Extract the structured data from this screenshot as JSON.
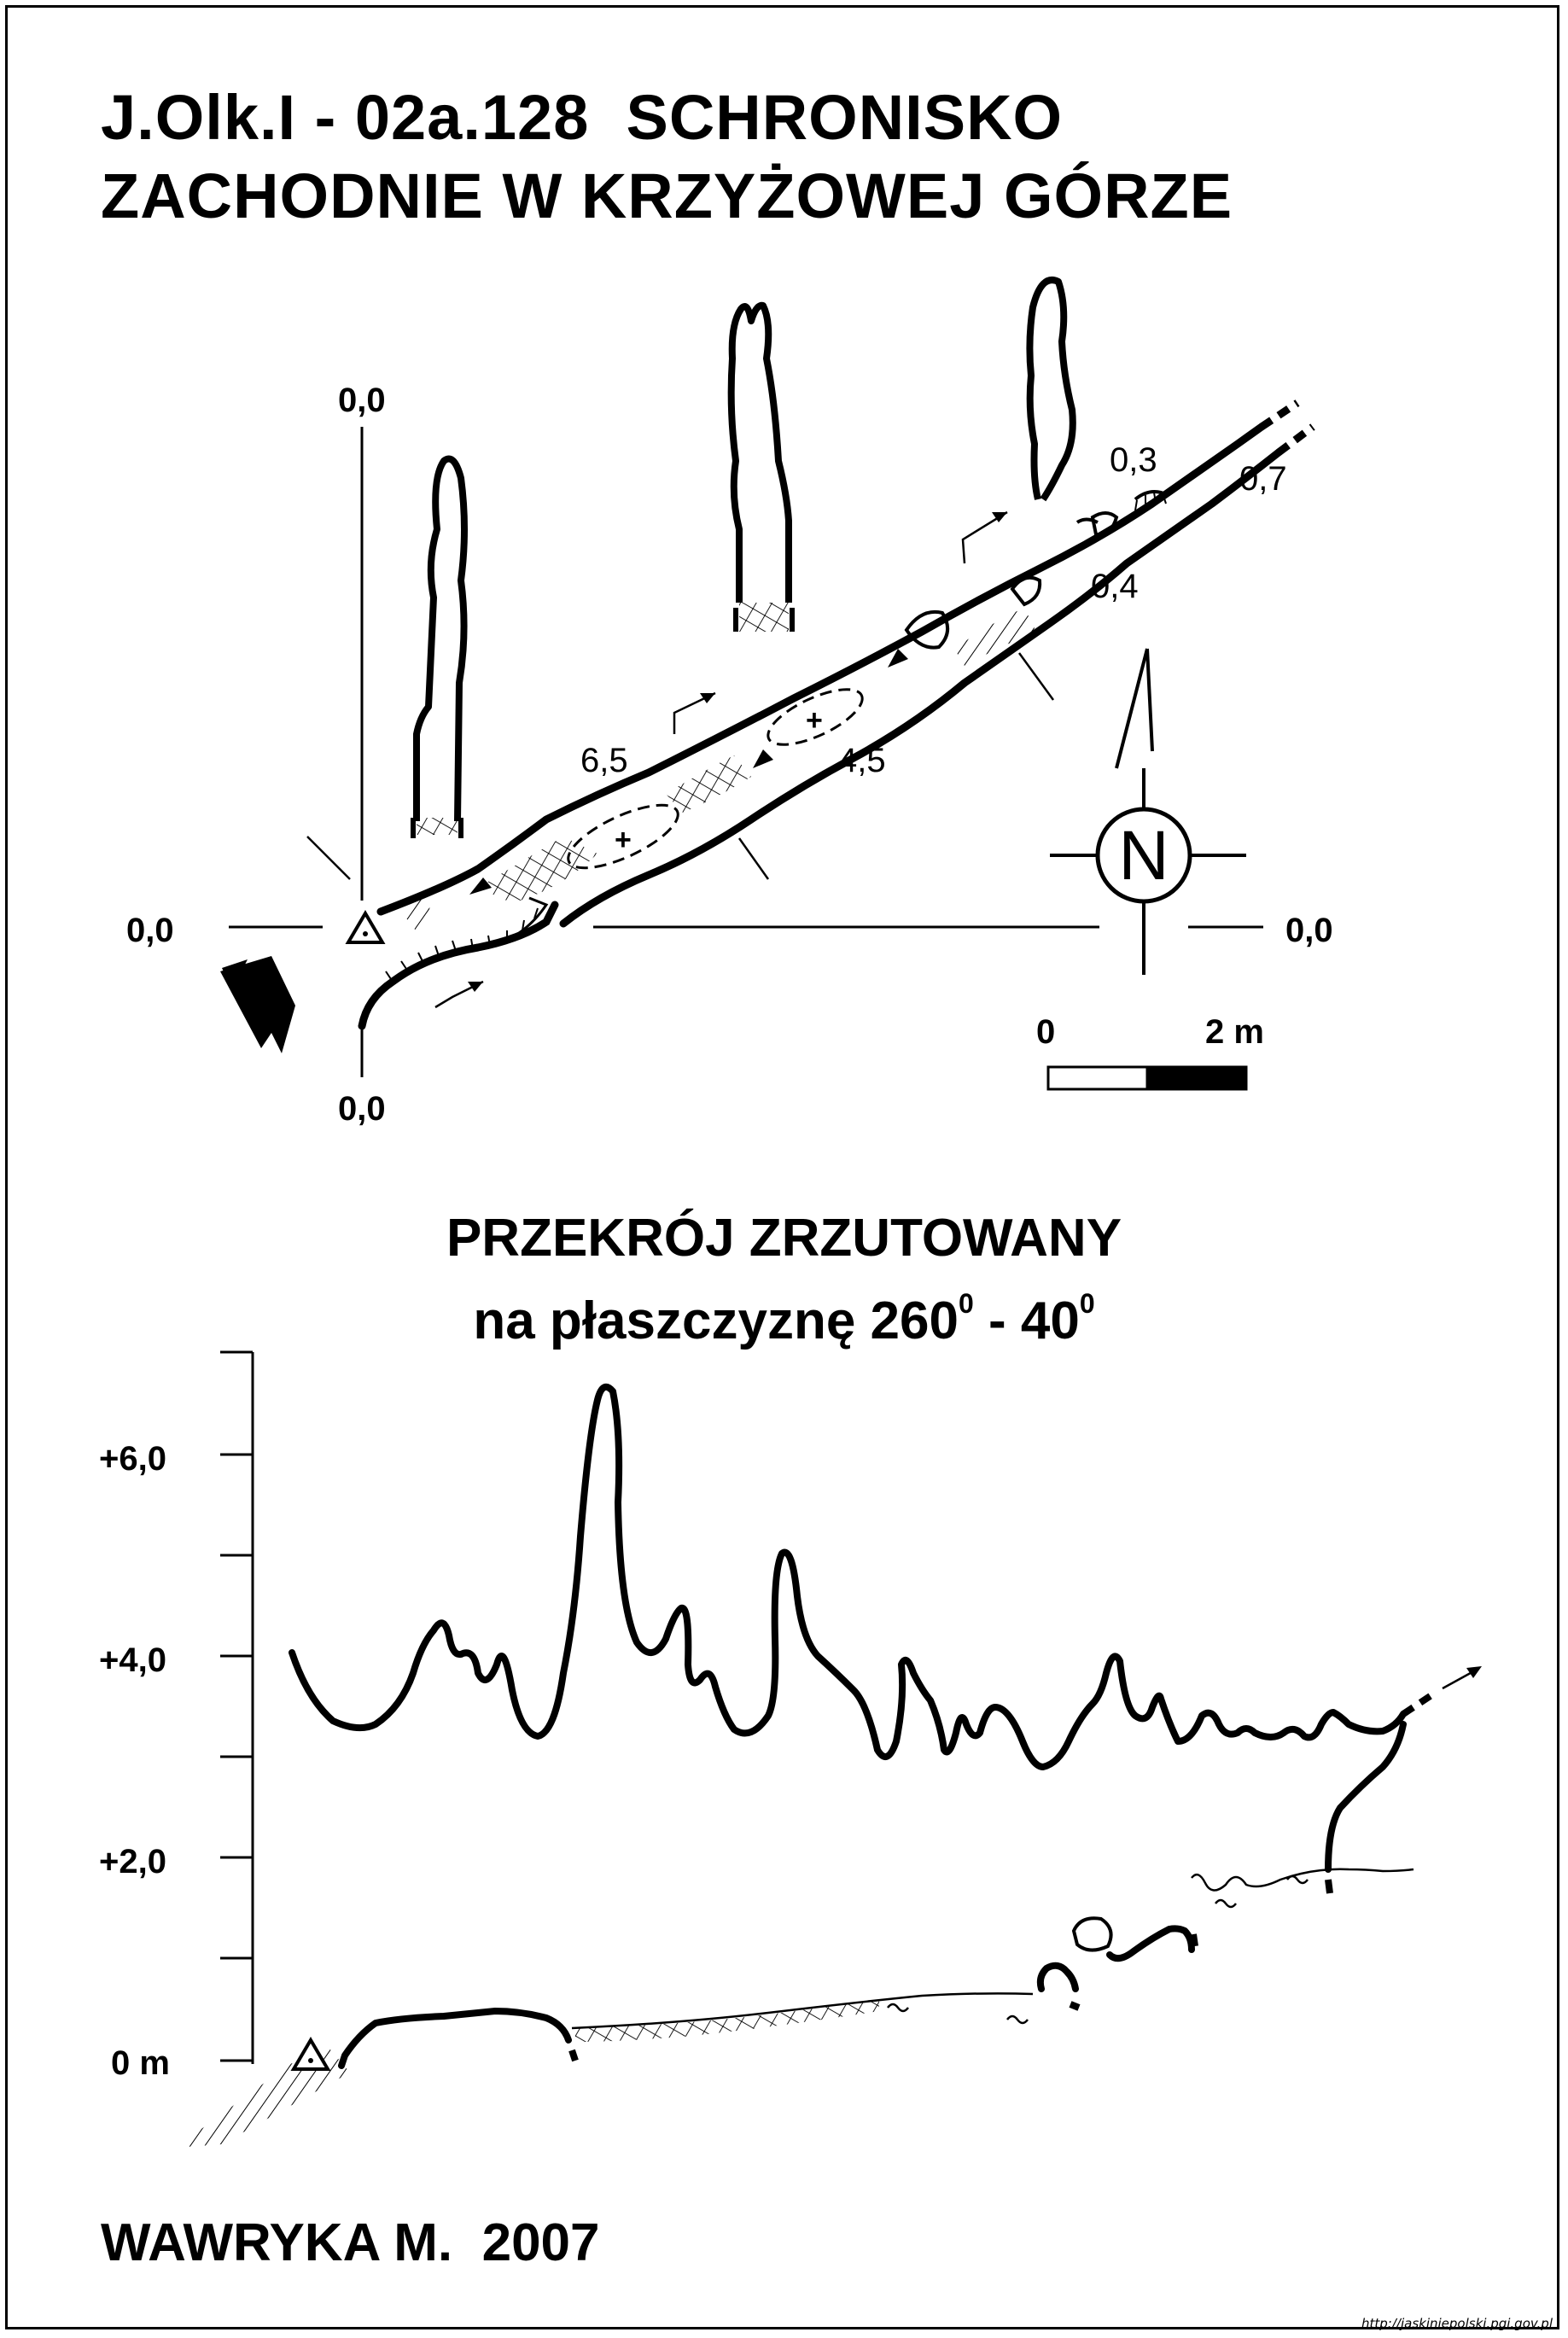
{
  "title": {
    "line1": "J.Olk.I - 02a.128  SCHRONISKO",
    "line2": "ZACHODNIE W KRZYŻOWEJ GÓRZE"
  },
  "plan": {
    "axis_labels": {
      "top": "0,0",
      "bottom": "0,0",
      "left": "0,0",
      "right": "0,0"
    },
    "heights": {
      "h_6_5": "6,5",
      "h_4_5": "4,5",
      "h_0_3": "0,3",
      "h_0_7": "0,7",
      "h_0_4": "0,4"
    },
    "north_label": "N",
    "scale": {
      "start": "0",
      "end": "2 m"
    }
  },
  "section": {
    "title_line1": "PRZEKRÓJ ZRZUTOWANY",
    "title_line2_prefix": "na płaszczyznę 260",
    "deg1": "0",
    "title_line2_mid": " - 40",
    "deg2": "0",
    "y_labels": [
      "+6,0",
      "+4,0",
      "+2,0",
      "0 m"
    ]
  },
  "author": "WAWRYKA M.  2007",
  "credit": "http://jaskiniepolski.pgi.gov.pl"
}
